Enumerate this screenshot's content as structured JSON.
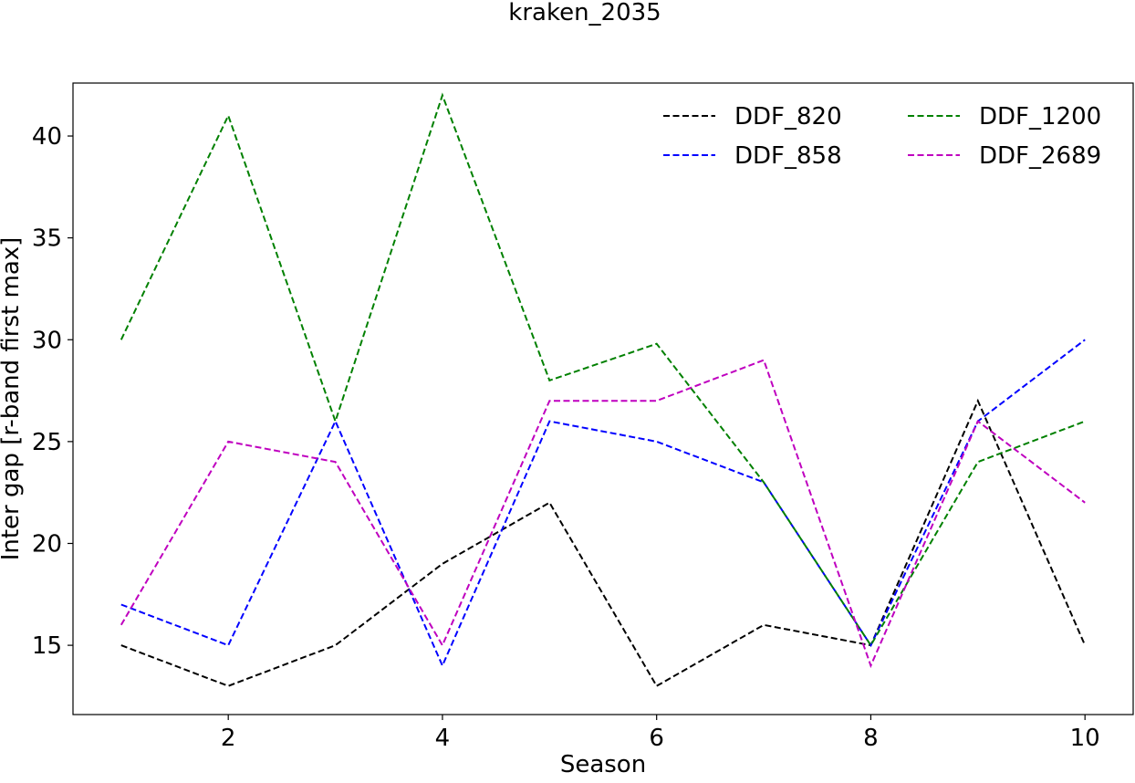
{
  "chart_data": {
    "type": "line",
    "title": "kraken_2035",
    "xlabel": "Season",
    "ylabel": "Inter gap [r-band first max]",
    "xlim": [
      0.55,
      10.45
    ],
    "ylim": [
      11.6,
      42.6
    ],
    "x_ticks": [
      2,
      4,
      6,
      8,
      10
    ],
    "y_ticks": [
      15,
      20,
      25,
      30,
      35,
      40
    ],
    "grid": false,
    "legend_position": "top-right",
    "line_style": "dashed",
    "x": [
      1,
      2,
      3,
      4,
      5,
      6,
      7,
      8,
      9,
      10
    ],
    "series": [
      {
        "name": "DDF_820",
        "color": "#000000",
        "values": [
          15,
          13,
          15,
          19,
          22,
          13,
          16,
          15,
          27,
          15
        ]
      },
      {
        "name": "DDF_858",
        "color": "#0000ff",
        "values": [
          17,
          15,
          26,
          14,
          26,
          25,
          23,
          15,
          26,
          30
        ]
      },
      {
        "name": "DDF_1200",
        "color": "#008000",
        "values": [
          30,
          41,
          26,
          42,
          28,
          29.8,
          23,
          15,
          24,
          26
        ]
      },
      {
        "name": "DDF_2689",
        "color": "#bf00bf",
        "values": [
          16,
          25,
          24,
          15,
          27,
          27,
          29,
          14,
          26,
          22
        ]
      }
    ]
  }
}
